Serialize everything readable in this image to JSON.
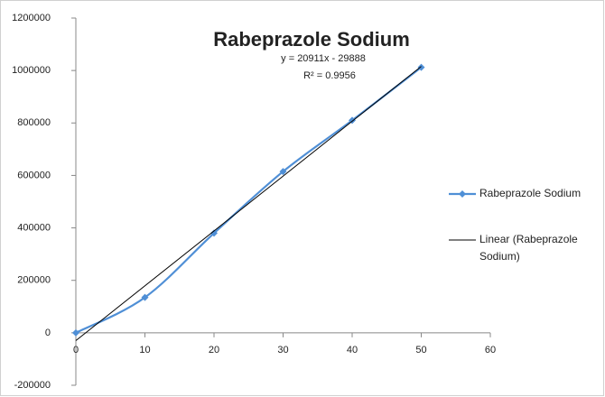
{
  "chart_data": {
    "type": "line",
    "title": "Rabeprazole Sodium",
    "x": [
      0,
      10,
      20,
      30,
      40,
      50
    ],
    "series": [
      {
        "name": "Rabeprazole Sodium",
        "color": "#4f8fd6",
        "values": [
          0,
          135000,
          380000,
          615000,
          810000,
          1012000
        ],
        "smooth": true
      }
    ],
    "trendline": {
      "name": "Linear (Rabeprazole Sodium)",
      "color": "#000000",
      "slope": 20911,
      "intercept": -29888,
      "equation": "y = 20911x - 29888",
      "r_squared": "R² = 0.9956"
    },
    "xlim": [
      0,
      60
    ],
    "xticks": [
      0,
      10,
      20,
      30,
      40,
      50,
      60
    ],
    "ylim": [
      -200000,
      1200000
    ],
    "yticks": [
      -200000,
      0,
      200000,
      400000,
      600000,
      800000,
      1000000,
      1200000
    ],
    "grid": false,
    "legend": "right"
  }
}
